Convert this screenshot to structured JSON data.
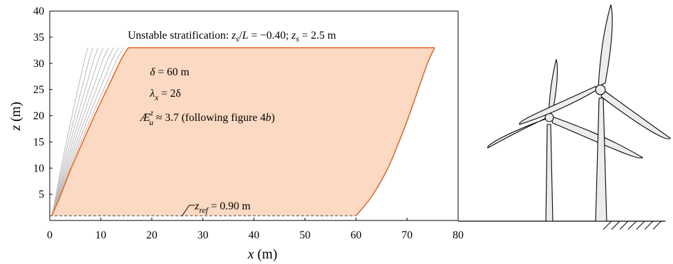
{
  "chart_data": {
    "type": "area",
    "title": "Unstable stratification: z_s/L = −0.40; z_s = 2.5 m",
    "title_parts": {
      "lead": "Unstable stratification: ",
      "z1": "z",
      "s1": "s",
      "ratio": "/",
      "L": "L",
      "ratio_value": " = −0.40; ",
      "z2": "z",
      "s2": "s",
      "zs_value": " = 2.5 m"
    },
    "xlabel": {
      "symbol": "x",
      "unit": " (m)"
    },
    "ylabel": {
      "symbol": "z",
      "unit": " (m)"
    },
    "xlim": [
      0,
      80
    ],
    "ylim": [
      0,
      40
    ],
    "xticks": [
      "0",
      "10",
      "20",
      "30",
      "40",
      "50",
      "60",
      "70",
      "80"
    ],
    "yticks": [
      "5",
      "10",
      "15",
      "20",
      "25",
      "30",
      "35",
      "40"
    ],
    "ytick_values": [
      5,
      10,
      15,
      20,
      25,
      30,
      35,
      40
    ],
    "xtick_values": [
      0,
      10,
      20,
      30,
      40,
      50,
      60,
      70,
      80
    ],
    "annotations": {
      "delta": {
        "symbol": "δ",
        "text": " = 60 m"
      },
      "lambda": {
        "symbol": "λ",
        "sub": "x",
        "text": " = 2δ"
      },
      "aspect": {
        "symbol": "Æ",
        "sup": "z",
        "sub": "u",
        "text": " ≈ 3.7 (following figure 4",
        "fig": "b",
        "close": ")"
      },
      "zref": {
        "symbol": "z",
        "sub": "ref",
        "text": " = 0.90 m"
      }
    },
    "z_ref": 0.9,
    "z_top": 33,
    "eddy_front": {
      "name": "",
      "x": [
        0.4,
        2,
        4,
        6,
        8,
        10,
        12,
        14,
        15.4
      ],
      "z": [
        0.9,
        4.5,
        9.5,
        14,
        18.4,
        22.6,
        26.7,
        30.8,
        33
      ]
    },
    "eddy_back": {
      "name": "",
      "x": [
        60,
        63,
        66,
        68,
        70,
        72,
        74,
        75.4
      ],
      "z": [
        0.9,
        4.5,
        9.5,
        14,
        19,
        24.5,
        30,
        33
      ]
    },
    "grey_fronts_top_x": [
      7.5,
      8.5,
      9.5,
      10.5,
      11.5,
      12.5,
      13.5,
      14.5
    ],
    "colors": {
      "fill": "#fbd9c2",
      "edge": "#e06a2c",
      "grey": "#b9b9b9",
      "dashed": "#555555",
      "turbine_fill": "#ececec"
    },
    "icons": [
      "wind-turbine-icon",
      "ground-hatch-icon"
    ]
  }
}
